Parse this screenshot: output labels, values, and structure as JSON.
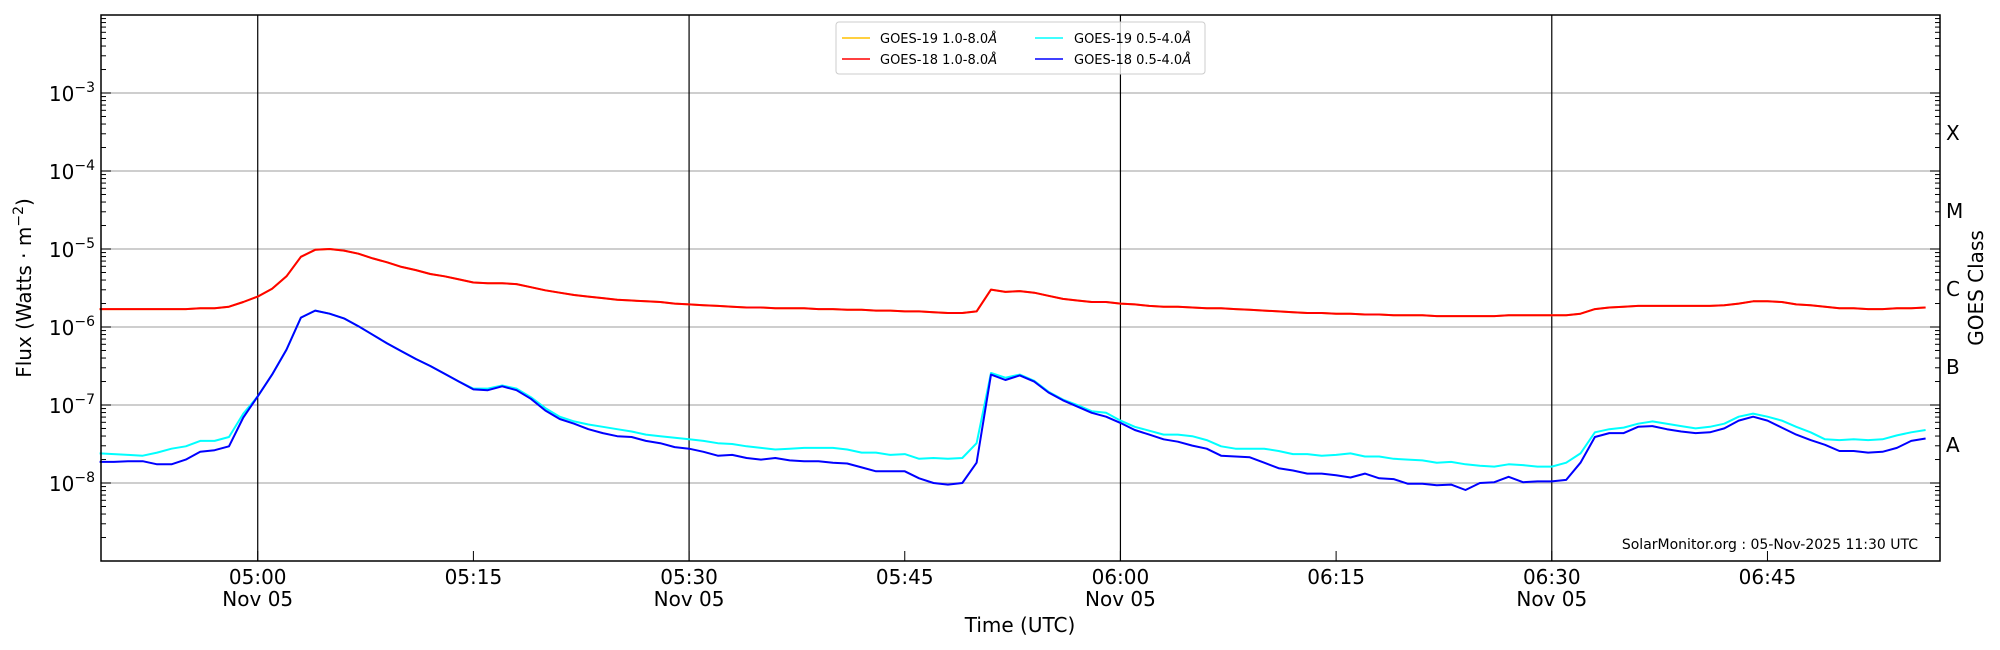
{
  "chart_data": {
    "type": "line",
    "title": "",
    "xlabel": "Time (UTC)",
    "ylabel": "Flux (Watts · m",
    "ylabel_exp": "−2",
    "ylabel_close": ")",
    "y2label": "GOES Class",
    "yscale": "log",
    "ylim_log10": [
      -9,
      -2
    ],
    "x_start": "2025-11-05 04:49 UTC",
    "x_cadence_minutes": 1,
    "x_range_minutes_from_0500": [
      -10.9,
      117.0
    ],
    "y_ticks": [
      {
        "base": "10",
        "exp": "−3",
        "log10": -3
      },
      {
        "base": "10",
        "exp": "−4",
        "log10": -4
      },
      {
        "base": "10",
        "exp": "−5",
        "log10": -5
      },
      {
        "base": "10",
        "exp": "−6",
        "log10": -6
      },
      {
        "base": "10",
        "exp": "−7",
        "log10": -7
      },
      {
        "base": "10",
        "exp": "−8",
        "log10": -8
      }
    ],
    "class_ticks": [
      {
        "label": "X",
        "log10": -3.5
      },
      {
        "label": "M",
        "log10": -4.5
      },
      {
        "label": "C",
        "log10": -5.5
      },
      {
        "label": "B",
        "log10": -6.5
      },
      {
        "label": "A",
        "log10": -7.5
      }
    ],
    "x_ticks": [
      {
        "time": "05:00",
        "date": "Nov 05",
        "minute": 0
      },
      {
        "time": "05:15",
        "date": "",
        "minute": 15
      },
      {
        "time": "05:30",
        "date": "Nov 05",
        "minute": 30
      },
      {
        "time": "05:45",
        "date": "",
        "minute": 45
      },
      {
        "time": "06:00",
        "date": "Nov 05",
        "minute": 60
      },
      {
        "time": "06:15",
        "date": "",
        "minute": 75
      },
      {
        "time": "06:30",
        "date": "Nov 05",
        "minute": 90
      },
      {
        "time": "06:45",
        "date": "",
        "minute": 105
      }
    ],
    "grid": "horizontal at decades; vertical black lines at half hours",
    "legend_placement": "top-center",
    "watermark": "SolarMonitor.org : 05-Nov-2025 11:30 UTC",
    "series": [
      {
        "name": "GOES-19 1.0-8.0",
        "unit_suffix": "Å",
        "color": "#ffc000",
        "values_log10": "same as GOES-18 1.0-8.0 (hidden beneath)"
      },
      {
        "name": "GOES-18 1.0-8.0",
        "unit_suffix": "Å",
        "color": "#ff0000",
        "values_log10": [
          -5.77,
          -5.77,
          -5.77,
          -5.77,
          -5.77,
          -5.77,
          -5.77,
          -5.76,
          -5.76,
          -5.74,
          -5.68,
          -5.61,
          -5.51,
          -5.35,
          -5.1,
          -5.01,
          -5.0,
          -5.02,
          -5.06,
          -5.12,
          -5.17,
          -5.23,
          -5.27,
          -5.32,
          -5.35,
          -5.39,
          -5.43,
          -5.44,
          -5.44,
          -5.45,
          -5.49,
          -5.53,
          -5.56,
          -5.59,
          -5.61,
          -5.63,
          -5.65,
          -5.66,
          -5.67,
          -5.68,
          -5.7,
          -5.71,
          -5.72,
          -5.73,
          -5.74,
          -5.75,
          -5.75,
          -5.76,
          -5.76,
          -5.76,
          -5.77,
          -5.77,
          -5.78,
          -5.78,
          -5.79,
          -5.79,
          -5.8,
          -5.8,
          -5.81,
          -5.82,
          -5.82,
          -5.8,
          -5.52,
          -5.55,
          -5.54,
          -5.56,
          -5.6,
          -5.64,
          -5.66,
          -5.68,
          -5.68,
          -5.7,
          -5.71,
          -5.73,
          -5.74,
          -5.74,
          -5.75,
          -5.76,
          -5.76,
          -5.77,
          -5.78,
          -5.79,
          -5.8,
          -5.81,
          -5.82,
          -5.82,
          -5.83,
          -5.83,
          -5.84,
          -5.84,
          -5.85,
          -5.85,
          -5.85,
          -5.86,
          -5.86,
          -5.86,
          -5.86,
          -5.86,
          -5.85,
          -5.85,
          -5.85,
          -5.85,
          -5.85,
          -5.83,
          -5.77,
          -5.75,
          -5.74,
          -5.73,
          -5.73,
          -5.73,
          -5.73,
          -5.73,
          -5.73,
          -5.72,
          -5.7,
          -5.67,
          -5.67,
          -5.68,
          -5.71,
          -5.72,
          -5.74,
          -5.76,
          -5.76,
          -5.77,
          -5.77,
          -5.76,
          -5.76,
          -5.75
        ]
      },
      {
        "name": "GOES-19 0.5-4.0",
        "unit_suffix": "Å",
        "color": "#00ffff",
        "values_log10": [
          -7.62,
          -7.63,
          -7.64,
          -7.65,
          -7.61,
          -7.56,
          -7.53,
          -7.46,
          -7.46,
          -7.41,
          -7.11,
          -6.89,
          -6.61,
          -6.29,
          -5.88,
          -5.79,
          -5.83,
          -5.89,
          -5.99,
          -6.1,
          -6.21,
          -6.31,
          -6.41,
          -6.5,
          -6.6,
          -6.7,
          -6.79,
          -6.79,
          -6.75,
          -6.79,
          -6.9,
          -7.04,
          -7.15,
          -7.21,
          -7.25,
          -7.28,
          -7.31,
          -7.34,
          -7.38,
          -7.4,
          -7.42,
          -7.44,
          -7.46,
          -7.49,
          -7.5,
          -7.53,
          -7.55,
          -7.57,
          -7.56,
          -7.55,
          -7.55,
          -7.55,
          -7.57,
          -7.61,
          -7.61,
          -7.64,
          -7.63,
          -7.69,
          -7.68,
          -7.69,
          -7.68,
          -7.49,
          -6.59,
          -6.65,
          -6.61,
          -6.69,
          -6.83,
          -6.93,
          -7.0,
          -7.08,
          -7.1,
          -7.2,
          -7.28,
          -7.33,
          -7.38,
          -7.38,
          -7.4,
          -7.45,
          -7.53,
          -7.56,
          -7.56,
          -7.56,
          -7.59,
          -7.63,
          -7.63,
          -7.65,
          -7.64,
          -7.62,
          -7.66,
          -7.66,
          -7.69,
          -7.7,
          -7.71,
          -7.74,
          -7.73,
          -7.76,
          -7.78,
          -7.79,
          -7.76,
          -7.77,
          -7.79,
          -7.79,
          -7.74,
          -7.62,
          -7.35,
          -7.31,
          -7.29,
          -7.24,
          -7.21,
          -7.24,
          -7.27,
          -7.3,
          -7.28,
          -7.24,
          -7.15,
          -7.11,
          -7.15,
          -7.2,
          -7.28,
          -7.35,
          -7.44,
          -7.45,
          -7.44,
          -7.45,
          -7.44,
          -7.39,
          -7.35,
          -7.32
        ]
      },
      {
        "name": "GOES-18 0.5-4.0",
        "unit_suffix": "Å",
        "color": "#0000ff",
        "values_log10": [
          -7.73,
          -7.73,
          -7.72,
          -7.72,
          -7.76,
          -7.76,
          -7.7,
          -7.6,
          -7.58,
          -7.53,
          -7.16,
          -6.89,
          -6.61,
          -6.29,
          -5.88,
          -5.79,
          -5.83,
          -5.89,
          -5.99,
          -6.1,
          -6.21,
          -6.31,
          -6.41,
          -6.5,
          -6.6,
          -6.7,
          -6.8,
          -6.81,
          -6.76,
          -6.81,
          -6.92,
          -7.07,
          -7.18,
          -7.24,
          -7.31,
          -7.36,
          -7.4,
          -7.41,
          -7.46,
          -7.49,
          -7.54,
          -7.56,
          -7.6,
          -7.65,
          -7.64,
          -7.68,
          -7.7,
          -7.68,
          -7.71,
          -7.72,
          -7.72,
          -7.74,
          -7.75,
          -7.8,
          -7.85,
          -7.85,
          -7.85,
          -7.94,
          -8.0,
          -8.02,
          -8.0,
          -7.74,
          -6.61,
          -6.68,
          -6.62,
          -6.7,
          -6.84,
          -6.94,
          -7.02,
          -7.1,
          -7.15,
          -7.23,
          -7.32,
          -7.38,
          -7.44,
          -7.47,
          -7.52,
          -7.56,
          -7.65,
          -7.66,
          -7.67,
          -7.74,
          -7.81,
          -7.84,
          -7.88,
          -7.88,
          -7.9,
          -7.93,
          -7.88,
          -7.94,
          -7.95,
          -8.01,
          -8.01,
          -8.03,
          -8.02,
          -8.09,
          -8.0,
          -7.99,
          -7.92,
          -7.99,
          -7.98,
          -7.98,
          -7.96,
          -7.74,
          -7.41,
          -7.36,
          -7.36,
          -7.28,
          -7.27,
          -7.31,
          -7.34,
          -7.36,
          -7.35,
          -7.3,
          -7.2,
          -7.15,
          -7.2,
          -7.29,
          -7.38,
          -7.45,
          -7.51,
          -7.59,
          -7.59,
          -7.61,
          -7.6,
          -7.55,
          -7.46,
          -7.43
        ]
      }
    ]
  }
}
